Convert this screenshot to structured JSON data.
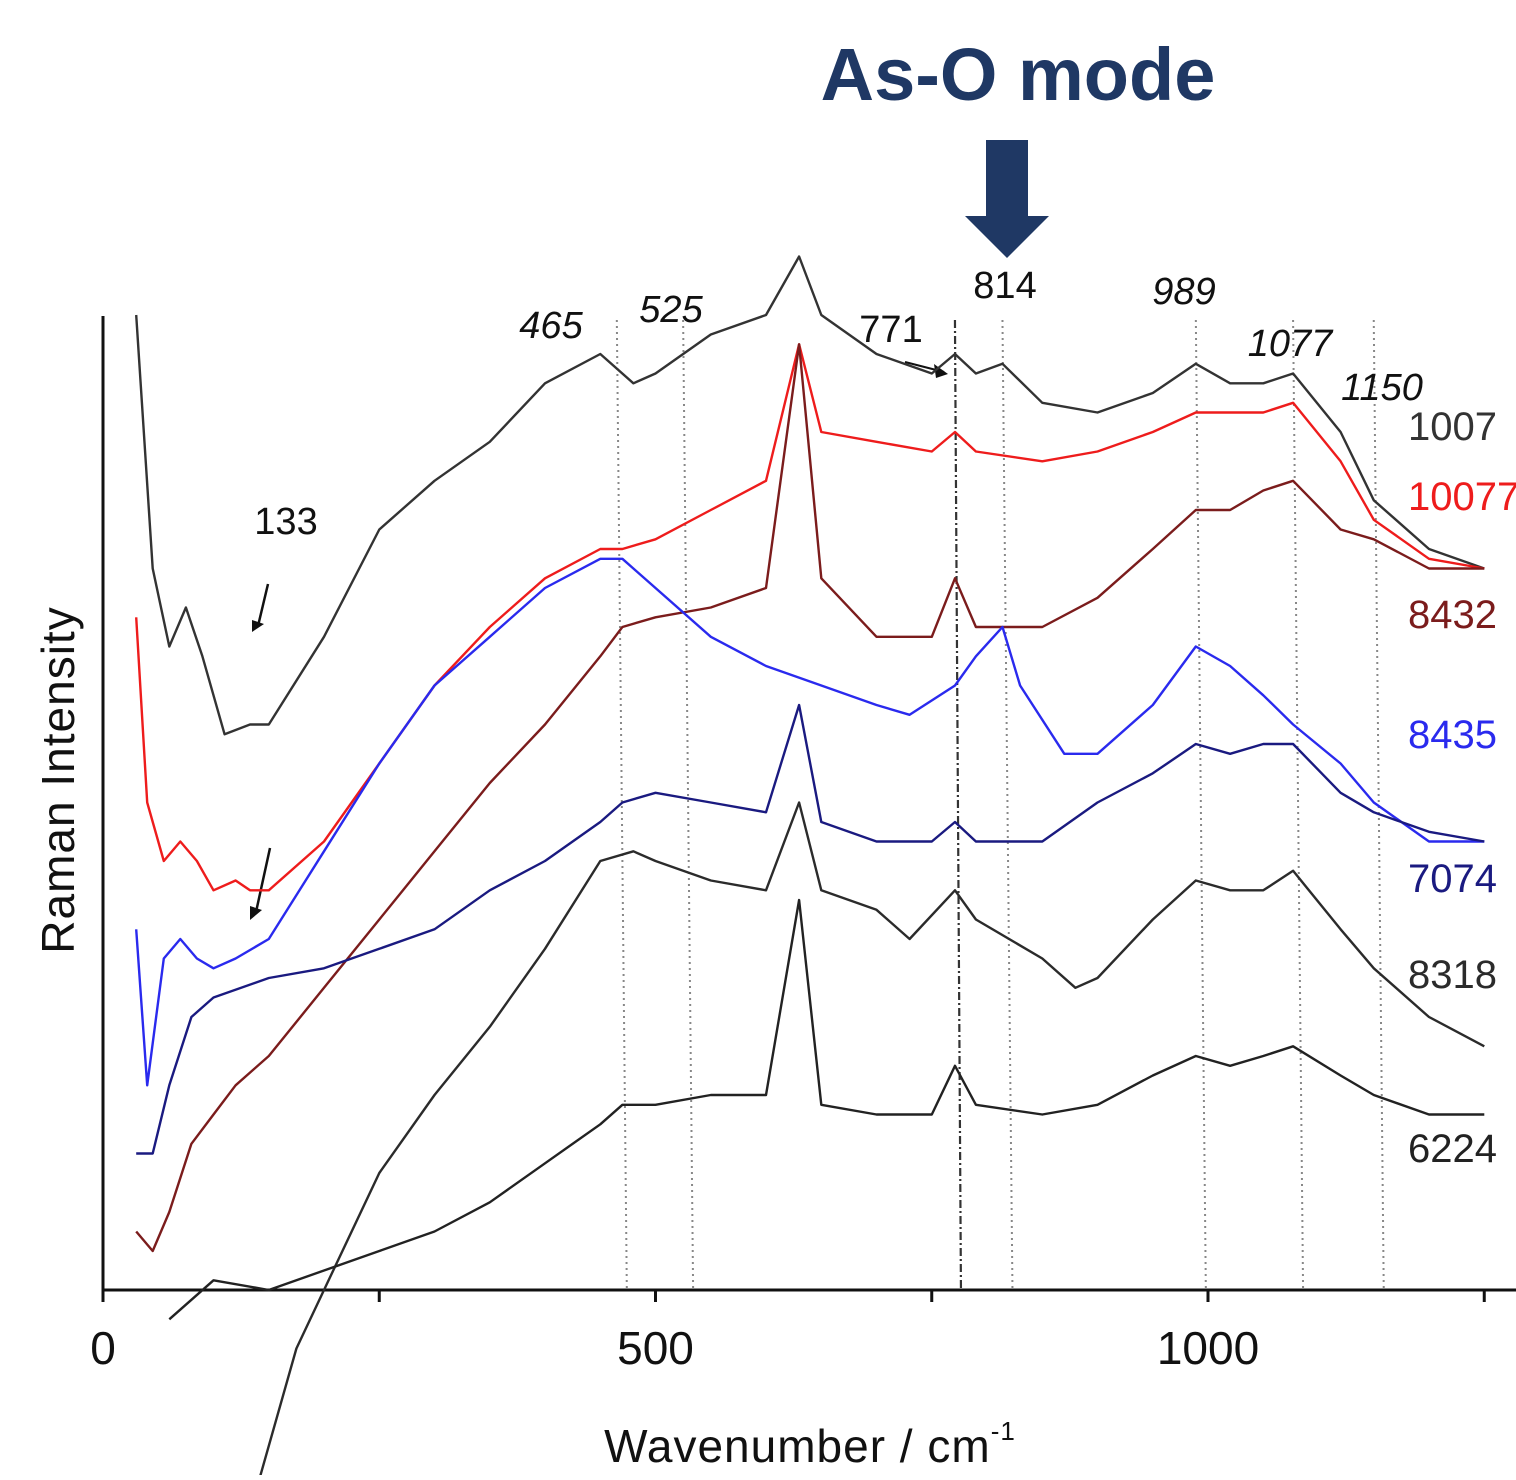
{
  "banner": {
    "title": "As-O mode",
    "color": "#1f3864"
  },
  "chart_data": {
    "type": "line",
    "xlabel": "Wavenumber / cm",
    "xlabel_superscript": "-1",
    "ylabel": "Raman Intensity",
    "xlim": [
      0,
      1280
    ],
    "x_ticks": [
      0,
      500,
      1000
    ],
    "y_tick_labels": false,
    "grid": false,
    "legend": "series labels at right end of each trace",
    "highlighted_peak": 814,
    "peak_markers": [
      {
        "label": "465",
        "x": 465,
        "italic": true
      },
      {
        "label": "525",
        "x": 525,
        "italic": true
      },
      {
        "label": "771",
        "x": 771,
        "italic": false
      },
      {
        "label": "814",
        "x": 814,
        "italic": false
      },
      {
        "label": "989",
        "x": 989,
        "italic": true
      },
      {
        "label": "1077",
        "x": 1077,
        "italic": true
      },
      {
        "label": "1150",
        "x": 1150,
        "italic": true
      }
    ],
    "annotation_peak": {
      "label": "133",
      "x": 133
    },
    "series": [
      {
        "name": "1007",
        "color": "#333333",
        "x": [
          30,
          45,
          60,
          75,
          90,
          110,
          133,
          150,
          200,
          250,
          300,
          350,
          400,
          450,
          480,
          500,
          550,
          600,
          630,
          650,
          700,
          750,
          771,
          790,
          814,
          850,
          900,
          950,
          989,
          1020,
          1050,
          1077,
          1120,
          1150,
          1200,
          1250,
          1280
        ],
        "y": [
          100,
          74,
          66,
          70,
          65,
          57,
          58,
          58,
          67,
          78,
          83,
          87,
          93,
          96,
          93,
          94,
          98,
          100,
          106,
          100,
          96,
          94,
          96,
          94,
          95,
          91,
          90,
          92,
          95,
          93,
          93,
          94,
          88,
          81,
          76,
          74,
          74
        ]
      },
      {
        "name": "10077",
        "color": "#ee1c1c",
        "x": [
          30,
          40,
          55,
          70,
          85,
          100,
          120,
          133,
          150,
          200,
          250,
          300,
          350,
          400,
          450,
          470,
          500,
          550,
          600,
          630,
          650,
          700,
          750,
          771,
          790,
          850,
          900,
          950,
          989,
          1020,
          1050,
          1077,
          1120,
          1150,
          1200,
          1250,
          1280
        ],
        "y": [
          69,
          50,
          44,
          46,
          44,
          41,
          42,
          41,
          41,
          46,
          54,
          62,
          68,
          73,
          76,
          76,
          77,
          80,
          83,
          97,
          88,
          87,
          86,
          88,
          86,
          85,
          86,
          88,
          90,
          90,
          90,
          91,
          85,
          79,
          75,
          74,
          74
        ]
      },
      {
        "name": "8432",
        "color": "#7b1c1c",
        "x": [
          30,
          45,
          60,
          80,
          100,
          120,
          150,
          200,
          250,
          300,
          350,
          400,
          450,
          470,
          500,
          550,
          600,
          630,
          650,
          700,
          750,
          771,
          790,
          850,
          900,
          950,
          989,
          1020,
          1050,
          1077,
          1120,
          1150,
          1200,
          1250,
          1280
        ],
        "y": [
          6,
          4,
          8,
          15,
          18,
          21,
          24,
          31,
          38,
          45,
          52,
          58,
          65,
          68,
          69,
          70,
          72,
          97,
          73,
          67,
          67,
          73,
          68,
          68,
          71,
          76,
          80,
          80,
          82,
          83,
          78,
          77,
          74,
          74,
          74
        ]
      },
      {
        "name": "8435",
        "color": "#2a2aee",
        "x": [
          30,
          40,
          55,
          70,
          85,
          100,
          120,
          150,
          200,
          250,
          300,
          350,
          400,
          450,
          470,
          500,
          550,
          600,
          650,
          700,
          730,
          771,
          790,
          814,
          830,
          870,
          900,
          950,
          989,
          1020,
          1050,
          1077,
          1120,
          1150,
          1200,
          1250,
          1280
        ],
        "y": [
          37,
          21,
          34,
          36,
          34,
          33,
          34,
          36,
          45,
          54,
          62,
          67,
          72,
          75,
          75,
          72,
          67,
          64,
          62,
          60,
          59,
          62,
          65,
          68,
          62,
          55,
          55,
          60,
          66,
          64,
          61,
          58,
          54,
          50,
          46,
          46,
          46
        ]
      },
      {
        "name": "7074",
        "color": "#1a1a80",
        "x": [
          30,
          45,
          60,
          80,
          100,
          150,
          200,
          250,
          300,
          350,
          400,
          450,
          470,
          500,
          550,
          600,
          630,
          650,
          700,
          750,
          771,
          790,
          850,
          900,
          950,
          989,
          1020,
          1050,
          1077,
          1120,
          1150,
          1200,
          1250,
          1280
        ],
        "y": [
          14,
          14,
          21,
          28,
          30,
          32,
          33,
          35,
          37,
          41,
          44,
          48,
          50,
          51,
          50,
          49,
          60,
          48,
          46,
          46,
          48,
          46,
          46,
          50,
          53,
          56,
          55,
          56,
          56,
          51,
          49,
          47,
          46,
          46
        ]
      },
      {
        "name": "8318",
        "color": "#2b2b2b",
        "x": [
          140,
          175,
          200,
          250,
          300,
          350,
          400,
          450,
          480,
          500,
          550,
          600,
          630,
          650,
          700,
          730,
          771,
          790,
          850,
          880,
          900,
          950,
          989,
          1020,
          1050,
          1077,
          1120,
          1150,
          1200,
          1250,
          1280
        ],
        "y": [
          -20,
          -6,
          0,
          12,
          20,
          27,
          35,
          44,
          45,
          44,
          42,
          41,
          50,
          41,
          39,
          36,
          41,
          38,
          34,
          31,
          32,
          38,
          42,
          41,
          41,
          43,
          37,
          33,
          28,
          25,
          25
        ]
      },
      {
        "name": "6224",
        "color": "#222222",
        "x": [
          60,
          100,
          150,
          200,
          250,
          300,
          350,
          400,
          450,
          470,
          500,
          550,
          600,
          630,
          650,
          700,
          750,
          771,
          790,
          850,
          900,
          950,
          989,
          1020,
          1050,
          1077,
          1120,
          1150,
          1200,
          1250,
          1280
        ],
        "y": [
          -3,
          1,
          0,
          2,
          4,
          6,
          9,
          13,
          17,
          19,
          19,
          20,
          20,
          40,
          19,
          18,
          18,
          23,
          19,
          18,
          19,
          22,
          24,
          23,
          24,
          25,
          22,
          20,
          18,
          18,
          18
        ]
      }
    ]
  }
}
